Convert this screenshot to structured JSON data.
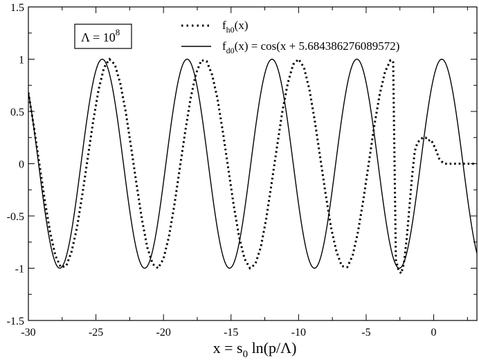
{
  "chart_data": {
    "type": "line",
    "title": "",
    "xlabel": {
      "main": "x = s",
      "sub": "0",
      "rest": " ln(p/Λ)"
    },
    "ylabel": "",
    "xlim": [
      -30,
      3.2
    ],
    "ylim": [
      -1.5,
      1.5
    ],
    "x_ticks": [
      -30,
      -25,
      -20,
      -15,
      -10,
      -5,
      0
    ],
    "x_tick_labels": [
      "-30",
      "-25",
      "-20",
      "-15",
      "-10",
      "-5",
      "0"
    ],
    "y_ticks": [
      -1.5,
      -1,
      -0.5,
      0,
      0.5,
      1,
      1.5
    ],
    "y_tick_labels": [
      "-1.5",
      "-1",
      "-0.5",
      "0",
      "0.5",
      "1",
      "1.5"
    ],
    "grid": false,
    "legend_position": "top",
    "annotation": {
      "base": "Λ = 10",
      "sup": "8"
    },
    "series": [
      {
        "name": {
          "main": "f",
          "sub": "h0",
          "rest": "(x)"
        },
        "style": "dotted",
        "color": "#000000",
        "x": [
          -30.0,
          -29.6,
          -29.2,
          -28.8,
          -28.4,
          -28.0,
          -27.6,
          -27.2,
          -26.8,
          -26.4,
          -26.0,
          -25.6,
          -25.2,
          -24.8,
          -24.4,
          -24.0,
          -23.6,
          -23.2,
          -22.8,
          -22.4,
          -22.0,
          -21.6,
          -21.2,
          -20.8,
          -20.4,
          -20.0,
          -19.6,
          -19.2,
          -18.8,
          -18.4,
          -18.0,
          -17.6,
          -17.2,
          -16.8,
          -16.4,
          -16.0,
          -15.6,
          -15.2,
          -14.8,
          -14.4,
          -14.0,
          -13.6,
          -13.2,
          -12.8,
          -12.4,
          -12.0,
          -11.6,
          -11.2,
          -10.8,
          -10.4,
          -10.0,
          -9.6,
          -9.2,
          -8.8,
          -8.4,
          -8.0,
          -7.6,
          -7.2,
          -6.8,
          -6.4,
          -6.0,
          -5.6,
          -5.2,
          -4.8,
          -4.4,
          -4.0,
          -3.6,
          -3.2,
          -3.0,
          -2.8,
          -2.6,
          -2.4,
          -2.2,
          -2.0,
          -1.8,
          -1.6,
          -1.4,
          -1.2,
          -1.0,
          -0.8,
          -0.6,
          -0.4,
          -0.2,
          0.0,
          0.2,
          0.4,
          0.6,
          0.8,
          1.0,
          1.2,
          1.4,
          1.6,
          1.8,
          2.0,
          2.2,
          2.4,
          2.6,
          2.8,
          3.0
        ],
        "y": [
          0.68,
          0.36,
          0.01,
          -0.34,
          -0.65,
          -0.88,
          -0.99,
          -0.98,
          -0.84,
          -0.61,
          -0.29,
          0.06,
          0.41,
          0.71,
          0.92,
          1.0,
          0.95,
          0.77,
          0.5,
          0.16,
          -0.19,
          -0.53,
          -0.8,
          -0.96,
          -1.0,
          -0.91,
          -0.7,
          -0.4,
          -0.05,
          0.3,
          0.62,
          0.86,
          0.99,
          0.98,
          0.85,
          0.62,
          0.3,
          -0.05,
          -0.4,
          -0.7,
          -0.91,
          -1.0,
          -0.96,
          -0.8,
          -0.53,
          -0.19,
          0.16,
          0.5,
          0.77,
          0.95,
          1.0,
          0.92,
          0.71,
          0.41,
          0.06,
          -0.29,
          -0.61,
          -0.84,
          -0.98,
          -0.99,
          -0.88,
          -0.65,
          -0.34,
          0.01,
          0.36,
          0.66,
          0.88,
          0.99,
          0.98,
          -0.92,
          -1.02,
          -1.05,
          -0.95,
          -0.72,
          -0.42,
          -0.12,
          0.12,
          0.2,
          0.23,
          0.25,
          0.25,
          0.22,
          0.23,
          0.18,
          0.12,
          0.05,
          0.02,
          0.0,
          0.0,
          0.0,
          0.0,
          0.0,
          0.0,
          0.0,
          0.0,
          0.0,
          0.0,
          0.0,
          0.0
        ]
      },
      {
        "name": {
          "main": "f",
          "sub": "d0",
          "rest": "(x) = cos(x + 5.684386276089572)"
        },
        "style": "solid",
        "color": "#000000",
        "formula_phase": 5.684386276089572
      }
    ]
  }
}
